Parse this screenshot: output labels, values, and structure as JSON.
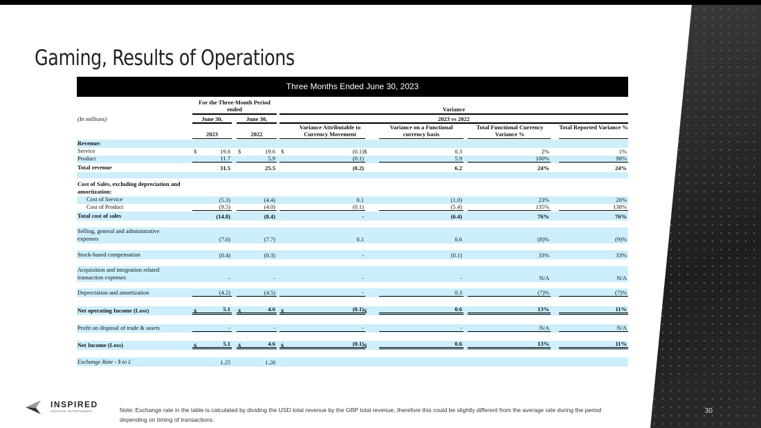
{
  "slide": {
    "title": "Gaming, Results of Operations",
    "page_number": "30",
    "note": "Note: Exchange rate in the table is calculated by dividing the USD total revenue by the GBP total revenue, therefore this could be slightly different from the average rate during the period depending on timing of transactions.",
    "logo": {
      "name": "INSPIRED",
      "tagline": "ESSENTIAL ENTERTAINMENT"
    }
  },
  "table": {
    "banner": "Three Months Ended June 30, 2023",
    "units": "(In millions)",
    "period_header": "For the Three-Month Period ended",
    "variance_header": "Variance",
    "june_a": "June 30,",
    "june_b": "June 30,",
    "vs_header": "2023 vs 2022",
    "columns": [
      "2023",
      "2022",
      "Variance Attributable to Currency Movement",
      "Variance on a Functional currency basis",
      "Total Functional Currency Variance %",
      "Total Reported Variance %"
    ],
    "currency_symbol": "$",
    "rows": [
      {
        "label": "Revenue:",
        "cells": [
          "",
          "",
          "",
          "",
          "",
          ""
        ],
        "style": "bold",
        "bg": "blue",
        "h": 12
      },
      {
        "label": "Service",
        "cells": [
          "19.8",
          "19.6",
          "(0.1)",
          "0.3",
          "2%",
          "1%"
        ],
        "dollar": true,
        "bg": "white",
        "h": 11
      },
      {
        "label": "Product",
        "cells": [
          "11.7",
          "5.9",
          "(0.1)",
          "5.9",
          "100%",
          "98%"
        ],
        "bg": "blue",
        "h": 11,
        "under": "u1"
      },
      {
        "label": "Total revenue",
        "cells": [
          "31.5",
          "25.5",
          "(0.2)",
          "6.2",
          "24%",
          "24%"
        ],
        "style": "bold",
        "bg": "white",
        "h": 13
      },
      {
        "label": "",
        "cells": [
          "",
          "",
          "",
          "",
          "",
          ""
        ],
        "bg": "blue",
        "h": 9
      },
      {
        "label": "Cost of Sales, excluding depreciation and amortization:",
        "cells": [
          "",
          "",
          "",
          "",
          "",
          ""
        ],
        "style": "bold",
        "bg": "white",
        "h": 26
      },
      {
        "label": "Cost of Service",
        "cells": [
          "(5.3)",
          "(4.4)",
          "0.1",
          "(1.0)",
          "23%",
          "20%"
        ],
        "bg": "blue",
        "h": 11,
        "indent": true
      },
      {
        "label": "Cost of Product",
        "cells": [
          "(9.5)",
          "(4.0)",
          "(0.1)",
          "(5.4)",
          "135%",
          "138%"
        ],
        "bg": "white",
        "h": 11,
        "indent": true,
        "under": "u1"
      },
      {
        "label": "Total cost of sales",
        "cells": [
          "(14.8)",
          "(8.4)",
          "-",
          "(6.4)",
          "76%",
          "76%"
        ],
        "style": "bold",
        "bg": "blue",
        "h": 13
      },
      {
        "label": "",
        "cells": [
          "",
          "",
          "",
          "",
          "",
          ""
        ],
        "bg": "white",
        "h": 10
      },
      {
        "label": "Selling, general and administrative expenses",
        "cells": [
          "(7.0)",
          "(7.7)",
          "0.1",
          "0.6",
          "(8)%",
          "(9)%"
        ],
        "bg": "blue",
        "h": 23
      },
      {
        "label": "",
        "cells": [
          "",
          "",
          "",
          "",
          "",
          ""
        ],
        "bg": "white",
        "h": 10
      },
      {
        "label": "Stock-based compensation",
        "cells": [
          "(0.4)",
          "(0.3)",
          "-",
          "(0.1)",
          "33%",
          "33%"
        ],
        "bg": "blue",
        "h": 13
      },
      {
        "label": "",
        "cells": [
          "",
          "",
          "",
          "",
          "",
          ""
        ],
        "bg": "white",
        "h": 10
      },
      {
        "label": "Acquisition and integration related transaction expenses",
        "cells": [
          "-",
          "-",
          "-",
          "-",
          "N/A",
          "N/A"
        ],
        "bg": "blue",
        "h": 23
      },
      {
        "label": "",
        "cells": [
          "",
          "",
          "",
          "",
          "",
          ""
        ],
        "bg": "white",
        "h": 9
      },
      {
        "label": "Depreciation and amortization",
        "cells": [
          "(4.2)",
          "(4.5)",
          "-",
          "0.3",
          "(7)%",
          "(7)%"
        ],
        "bg": "blue",
        "h": 13,
        "under": "u1"
      },
      {
        "label": "",
        "cells": [
          "",
          "",
          "",
          "",
          "",
          ""
        ],
        "bg": "white",
        "h": 13
      },
      {
        "label": "Net operating Income (Loss)",
        "cells": [
          "5.1",
          "4.6",
          "(0.1)",
          "0.6",
          "13%",
          "11%"
        ],
        "style": "bold",
        "dollar": true,
        "bg": "blue",
        "h": 13,
        "under": "u2"
      },
      {
        "label": "",
        "cells": [
          "",
          "",
          "",
          "",
          "",
          ""
        ],
        "bg": "white",
        "h": 13
      },
      {
        "label": "Profit on disposal of trade & assets",
        "cells": [
          "-",
          "-",
          "-",
          "-",
          "N/A",
          "N/A"
        ],
        "bg": "blue",
        "h": 12,
        "under": "u1"
      },
      {
        "label": "",
        "cells": [
          "",
          "",
          "",
          "",
          "",
          ""
        ],
        "bg": "white",
        "h": 12
      },
      {
        "label": "Net Income (Loss)",
        "cells": [
          "5.1",
          "4.6",
          "(0.1)",
          "0.6",
          "13%",
          "11%"
        ],
        "style": "bold",
        "dollar": true,
        "bg": "blue",
        "h": 13,
        "under": "u2"
      },
      {
        "label": "",
        "cells": [
          "",
          "",
          "",
          "",
          "",
          ""
        ],
        "bg": "white",
        "h": 11
      },
      {
        "label": "Exchange Rate - $ to £",
        "cells": [
          "1.25",
          "1.26",
          "",
          "",
          "",
          ""
        ],
        "style": "ital",
        "bg": "blue",
        "h": 13
      }
    ]
  }
}
